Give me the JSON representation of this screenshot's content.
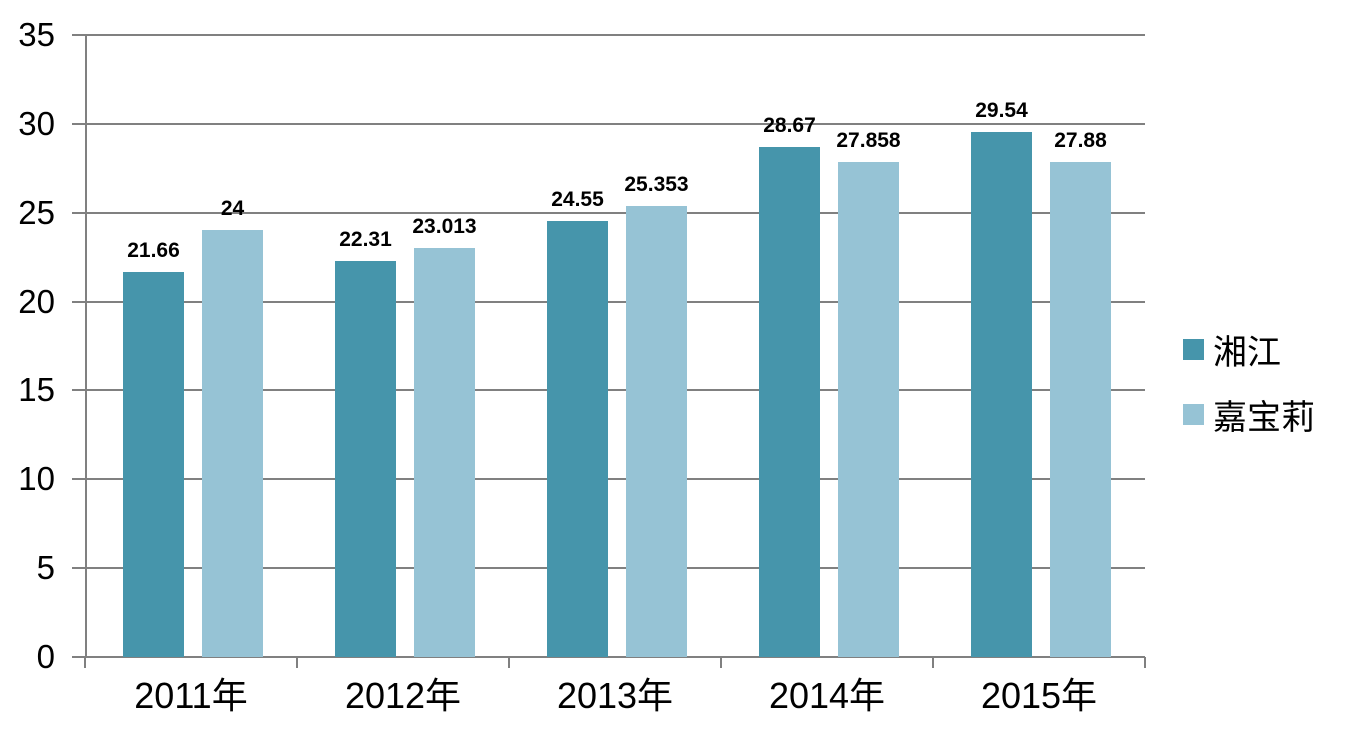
{
  "chart_data": {
    "type": "bar",
    "title": "",
    "xlabel": "",
    "ylabel": "",
    "categories": [
      "2011年",
      "2012年",
      "2013年",
      "2014年",
      "2015年"
    ],
    "series": [
      {
        "name": "湘江",
        "color": "#4695ab",
        "values": [
          21.66,
          22.31,
          24.55,
          28.67,
          29.54
        ],
        "labels": [
          "21.66",
          "22.31",
          "24.55",
          "28.67",
          "29.54"
        ]
      },
      {
        "name": "嘉宝莉",
        "color": "#96c3d5",
        "values": [
          24,
          23.013,
          25.353,
          27.858,
          27.88
        ],
        "labels": [
          "24",
          "23.013",
          "25.353",
          "27.858",
          "27.88"
        ]
      }
    ],
    "y_axis": {
      "min": 0,
      "max": 35,
      "step": 5,
      "tick_labels": [
        "0",
        "5",
        "10",
        "15",
        "20",
        "25",
        "30",
        "35"
      ]
    },
    "ylim": [
      0,
      35
    ],
    "grid": true,
    "grid_color": "#808080",
    "axis_color": "#808080",
    "background_color": "#ffffff",
    "legend_position": "right"
  }
}
